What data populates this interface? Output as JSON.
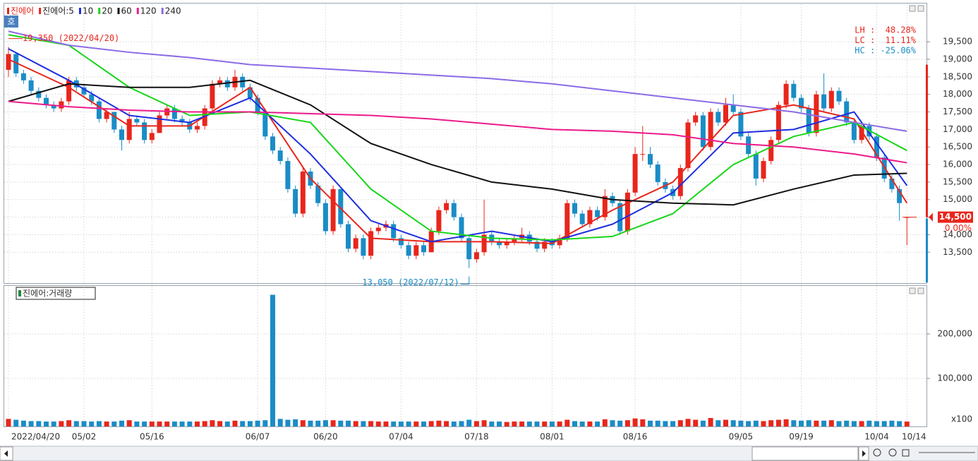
{
  "chart_data": {
    "type": "candlestick",
    "badge": "호",
    "legend": [
      {
        "name": "진에어",
        "color": "#e8261c"
      },
      {
        "name": "진에어:5",
        "color": "#e8261c"
      },
      {
        "name": "10",
        "color": "#1f2ee0"
      },
      {
        "name": "20",
        "color": "#19d619"
      },
      {
        "name": "60",
        "color": "#111111"
      },
      {
        "name": "120",
        "color": "#ec1a8a"
      },
      {
        "name": "240",
        "color": "#8c6ae6"
      }
    ],
    "up_color": "#e8261c",
    "down_color": "#1a8cc6",
    "ylim": [
      12640,
      20590
    ],
    "yticks": [
      {
        "value": 13500,
        "label": "13,500"
      },
      {
        "value": 14000,
        "label": "14,000"
      },
      {
        "value": 14500,
        "label": "14,500"
      },
      {
        "value": 15000,
        "label": "15,000"
      },
      {
        "value": 15500,
        "label": "15,500"
      },
      {
        "value": 16000,
        "label": "16,000"
      },
      {
        "value": 16500,
        "label": "16,500"
      },
      {
        "value": 17000,
        "label": "17,000"
      },
      {
        "value": 17500,
        "label": "17,500"
      },
      {
        "value": 18000,
        "label": "18,000"
      },
      {
        "value": 18500,
        "label": "18,500"
      },
      {
        "value": 19000,
        "label": "19,000"
      },
      {
        "value": 19500,
        "label": "19,500"
      }
    ],
    "grid": true,
    "categories": [
      "2022/04/20",
      null,
      null,
      null,
      null,
      null,
      null,
      null,
      null,
      null,
      "05/02",
      null,
      null,
      null,
      null,
      null,
      null,
      null,
      null,
      "05/16",
      null,
      null,
      null,
      null,
      null,
      null,
      null,
      null,
      null,
      null,
      null,
      null,
      null,
      "06/07",
      null,
      null,
      null,
      null,
      null,
      null,
      null,
      null,
      "06/20",
      null,
      null,
      null,
      null,
      null,
      null,
      null,
      null,
      null,
      "07/04",
      null,
      null,
      null,
      null,
      null,
      null,
      null,
      null,
      null,
      "07/18",
      null,
      null,
      null,
      null,
      null,
      null,
      null,
      null,
      null,
      "08/01",
      null,
      null,
      null,
      null,
      null,
      null,
      null,
      null,
      null,
      null,
      "08/16",
      null,
      null,
      null,
      null,
      null,
      null,
      null,
      null,
      null,
      null,
      null,
      null,
      null,
      "09/05",
      null,
      null,
      null,
      null,
      null,
      null,
      null,
      "09/19",
      null,
      null,
      null,
      null,
      null,
      null,
      null,
      null,
      null,
      "10/04",
      null,
      null,
      null,
      "10/14"
    ],
    "candles": [
      [
        18700,
        19350,
        18500,
        19150
      ],
      [
        19150,
        19200,
        18500,
        18600
      ],
      [
        18600,
        18700,
        18300,
        18400
      ],
      [
        18400,
        18500,
        18000,
        18100
      ],
      [
        18100,
        18200,
        17800,
        17900
      ],
      [
        17900,
        18000,
        17600,
        17700
      ],
      [
        17700,
        17800,
        17500,
        17600
      ],
      [
        17600,
        17900,
        17500,
        17800
      ],
      [
        17800,
        18500,
        17700,
        18400
      ],
      [
        18400,
        18500,
        18100,
        18200
      ],
      [
        18200,
        18300,
        17900,
        18000
      ],
      [
        18000,
        18100,
        17700,
        17800
      ],
      [
        17800,
        17900,
        17200,
        17300
      ],
      [
        17300,
        17600,
        17200,
        17500
      ],
      [
        17500,
        17500,
        16900,
        17000
      ],
      [
        17000,
        17100,
        16400,
        16700
      ],
      [
        16700,
        17500,
        16600,
        17300
      ],
      [
        17300,
        17400,
        17100,
        17200
      ],
      [
        17200,
        17300,
        16600,
        16700
      ],
      [
        16700,
        17000,
        16600,
        16900
      ],
      [
        16900,
        17500,
        16900,
        17400
      ],
      [
        17400,
        17700,
        17300,
        17600
      ],
      [
        17600,
        17700,
        17200,
        17300
      ],
      [
        17300,
        17400,
        17100,
        17200
      ],
      [
        17200,
        17300,
        16900,
        17000
      ],
      [
        17000,
        17200,
        16900,
        17100
      ],
      [
        17100,
        17700,
        17000,
        17600
      ],
      [
        17600,
        18400,
        17500,
        18300
      ],
      [
        18300,
        18500,
        18200,
        18400
      ],
      [
        18400,
        18500,
        18100,
        18200
      ],
      [
        18200,
        18700,
        18100,
        18500
      ],
      [
        18500,
        18600,
        18100,
        18200
      ],
      [
        18200,
        18300,
        17800,
        17900
      ],
      [
        17900,
        18000,
        17400,
        17500
      ],
      [
        17500,
        17600,
        16700,
        16800
      ],
      [
        16800,
        16900,
        16300,
        16400
      ],
      [
        16400,
        16500,
        16000,
        16100
      ],
      [
        16100,
        16200,
        15200,
        15300
      ],
      [
        15300,
        15400,
        14500,
        14600
      ],
      [
        14600,
        15900,
        14500,
        15800
      ],
      [
        15800,
        15900,
        15300,
        15400
      ],
      [
        15400,
        15500,
        14800,
        14900
      ],
      [
        14900,
        15000,
        14000,
        14100
      ],
      [
        14100,
        15400,
        14000,
        15300
      ],
      [
        15300,
        15300,
        14200,
        14300
      ],
      [
        14300,
        14400,
        13500,
        13600
      ],
      [
        13600,
        14000,
        13500,
        13900
      ],
      [
        13900,
        14000,
        13300,
        13400
      ],
      [
        13400,
        14200,
        13300,
        14100
      ],
      [
        14100,
        14300,
        14000,
        14200
      ],
      [
        14200,
        14400,
        14100,
        14300
      ],
      [
        14300,
        14400,
        13800,
        13900
      ],
      [
        13900,
        14000,
        13600,
        13700
      ],
      [
        13700,
        13800,
        13300,
        13400
      ],
      [
        13400,
        13800,
        13300,
        13700
      ],
      [
        13700,
        13800,
        13400,
        13500
      ],
      [
        13500,
        14200,
        13500,
        14100
      ],
      [
        14100,
        14800,
        14000,
        14700
      ],
      [
        14700,
        15000,
        14600,
        14900
      ],
      [
        14900,
        15000,
        14400,
        14500
      ],
      [
        14500,
        14600,
        13800,
        13900
      ],
      [
        13900,
        14000,
        13050,
        13300
      ],
      [
        13300,
        13600,
        13200,
        13500
      ],
      [
        13500,
        15000,
        13400,
        14000
      ],
      [
        14000,
        14100,
        13700,
        13800
      ],
      [
        13800,
        13900,
        13600,
        13700
      ],
      [
        13700,
        13900,
        13600,
        13800
      ],
      [
        13800,
        14000,
        13700,
        13900
      ],
      [
        13900,
        14200,
        13800,
        14000
      ],
      [
        14000,
        14100,
        13700,
        13800
      ],
      [
        13800,
        13900,
        13500,
        13600
      ],
      [
        13600,
        13900,
        13500,
        13800
      ],
      [
        13800,
        13900,
        13600,
        13700
      ],
      [
        13700,
        14000,
        13600,
        13900
      ],
      [
        13900,
        15000,
        13800,
        14900
      ],
      [
        14900,
        15000,
        14500,
        14600
      ],
      [
        14600,
        14700,
        14200,
        14300
      ],
      [
        14300,
        14800,
        14200,
        14700
      ],
      [
        14700,
        14800,
        14400,
        14500
      ],
      [
        14500,
        15300,
        14400,
        15100
      ],
      [
        15100,
        15200,
        14800,
        14900
      ],
      [
        14900,
        15000,
        14000,
        14100
      ],
      [
        14100,
        15300,
        14000,
        15200
      ],
      [
        15200,
        16500,
        15100,
        16300
      ],
      [
        16300,
        17100,
        16100,
        16300
      ],
      [
        16300,
        16500,
        15900,
        16000
      ],
      [
        16000,
        16100,
        15400,
        15500
      ],
      [
        15500,
        15600,
        15200,
        15300
      ],
      [
        15300,
        15400,
        15000,
        15100
      ],
      [
        15100,
        16000,
        15000,
        15900
      ],
      [
        15900,
        17300,
        15800,
        17200
      ],
      [
        17200,
        17500,
        17100,
        17400
      ],
      [
        17400,
        17500,
        16400,
        16500
      ],
      [
        16500,
        17600,
        16400,
        17500
      ],
      [
        17500,
        17600,
        17100,
        17200
      ],
      [
        17200,
        17900,
        17100,
        17700
      ],
      [
        17700,
        18000,
        17400,
        17500
      ],
      [
        17500,
        17600,
        16700,
        16800
      ],
      [
        16800,
        16900,
        16200,
        16300
      ],
      [
        16300,
        16400,
        15400,
        15600
      ],
      [
        15600,
        16200,
        15500,
        16100
      ],
      [
        16100,
        16800,
        16000,
        16700
      ],
      [
        16700,
        17800,
        16600,
        17700
      ],
      [
        17700,
        18400,
        17600,
        18300
      ],
      [
        18300,
        18400,
        17800,
        17900
      ],
      [
        17900,
        18000,
        17500,
        17600
      ],
      [
        17600,
        17700,
        16800,
        16900
      ],
      [
        16900,
        18100,
        16800,
        18000
      ],
      [
        18000,
        18600,
        17500,
        17600
      ],
      [
        17600,
        18200,
        17500,
        18100
      ],
      [
        18100,
        18200,
        17700,
        17800
      ],
      [
        17800,
        17900,
        17100,
        17200
      ],
      [
        17200,
        17300,
        16600,
        16700
      ],
      [
        16700,
        17200,
        16600,
        17100
      ],
      [
        17100,
        17200,
        16700,
        16800
      ],
      [
        16800,
        16900,
        16100,
        16200
      ],
      [
        16200,
        16300,
        15500,
        15600
      ],
      [
        15600,
        15700,
        15200,
        15300
      ],
      [
        15300,
        15400,
        14400,
        14900
      ],
      [
        14500,
        14500,
        13700,
        14500
      ]
    ],
    "ma_x": [
      0,
      8,
      16,
      24,
      32,
      40,
      48,
      56,
      64,
      72,
      80,
      88,
      96,
      104,
      112,
      119
    ],
    "moving_averages": [
      {
        "name": "진에어:5",
        "color": "#e8261c",
        "values": [
          19000,
          18200,
          17100,
          17100,
          18200,
          15600,
          13900,
          13800,
          13800,
          13750,
          14700,
          15500,
          17400,
          17700,
          17300,
          14900
        ]
      },
      {
        "name": "10",
        "color": "#1f2ee0",
        "values": [
          19300,
          18400,
          17400,
          17200,
          17900,
          16300,
          14400,
          13800,
          14100,
          13800,
          14300,
          15200,
          16900,
          17000,
          17500,
          15400
        ]
      },
      {
        "name": "20",
        "color": "#19d619",
        "values": [
          19700,
          19400,
          18200,
          17400,
          17500,
          17200,
          15300,
          14100,
          13900,
          13850,
          13950,
          14600,
          16000,
          16800,
          17200,
          16400
        ]
      },
      {
        "name": "60",
        "color": "#111111",
        "values": [
          17800,
          18300,
          18200,
          18200,
          18400,
          17700,
          16600,
          16000,
          15500,
          15300,
          15000,
          14900,
          14850,
          15300,
          15700,
          15750
        ]
      },
      {
        "name": "120",
        "color": "#ec1a8a",
        "values": [
          17800,
          17650,
          17550,
          17500,
          17500,
          17450,
          17400,
          17300,
          17150,
          17000,
          16950,
          16850,
          16600,
          16500,
          16300,
          16050
        ]
      },
      {
        "name": "240",
        "color": "#8c6ae6",
        "values": [
          19800,
          19400,
          19200,
          19050,
          18850,
          18750,
          18650,
          18550,
          18450,
          18300,
          18100,
          17900,
          17700,
          17500,
          17200,
          16950
        ]
      }
    ],
    "high_annotation": "19,350 (2022/04/20)",
    "low_annotation": "13,050 (2022/07/12)",
    "stats": [
      {
        "text": "LH :  48.28%",
        "color": "#e8261c"
      },
      {
        "text": "LC :  11.11%",
        "color": "#e8261c"
      },
      {
        "text": "HC : -25.06%",
        "color": "#1a8cc6"
      }
    ],
    "last_price": {
      "value": 14500,
      "label": "14,500"
    },
    "last_change": {
      "value": 0,
      "label": "0.00%"
    },
    "volume": {
      "title": "진에어:거래량",
      "unit": "x100",
      "ylim": [
        0,
        300000
      ],
      "yticks": [
        {
          "value": 100000,
          "label": "100,000"
        },
        {
          "value": 200000,
          "label": "200,000"
        }
      ],
      "values": [
        9000,
        7000,
        5000,
        4000,
        4000,
        3000,
        3000,
        4000,
        6000,
        4000,
        4000,
        3000,
        4000,
        3000,
        3000,
        5000,
        6000,
        3000,
        3000,
        3000,
        3000,
        3000,
        3000,
        3000,
        3000,
        3000,
        4000,
        6000,
        4000,
        3000,
        5000,
        4000,
        4000,
        5000,
        6000,
        288000,
        9000,
        7000,
        8000,
        6000,
        5000,
        5000,
        6000,
        6000,
        5000,
        5000,
        4000,
        4000,
        4000,
        3000,
        3000,
        3000,
        3000,
        3000,
        3000,
        3000,
        4000,
        5000,
        4000,
        3000,
        4000,
        7000,
        4000,
        6000,
        3000,
        3000,
        2000,
        3000,
        3000,
        3000,
        3000,
        3000,
        3000,
        3000,
        7000,
        4000,
        3000,
        3000,
        3000,
        8000,
        6000,
        5000,
        6000,
        10000,
        8000,
        5000,
        5000,
        4000,
        4000,
        6000,
        9000,
        7000,
        5000,
        11000,
        6000,
        7000,
        6000,
        5000,
        4000,
        5000,
        4000,
        6000,
        7000,
        8000,
        6000,
        5000,
        6000,
        5000,
        5000,
        6000,
        4000,
        5000,
        4000,
        4000,
        5000,
        4000,
        4000,
        5000,
        4000,
        3000
      ]
    }
  }
}
